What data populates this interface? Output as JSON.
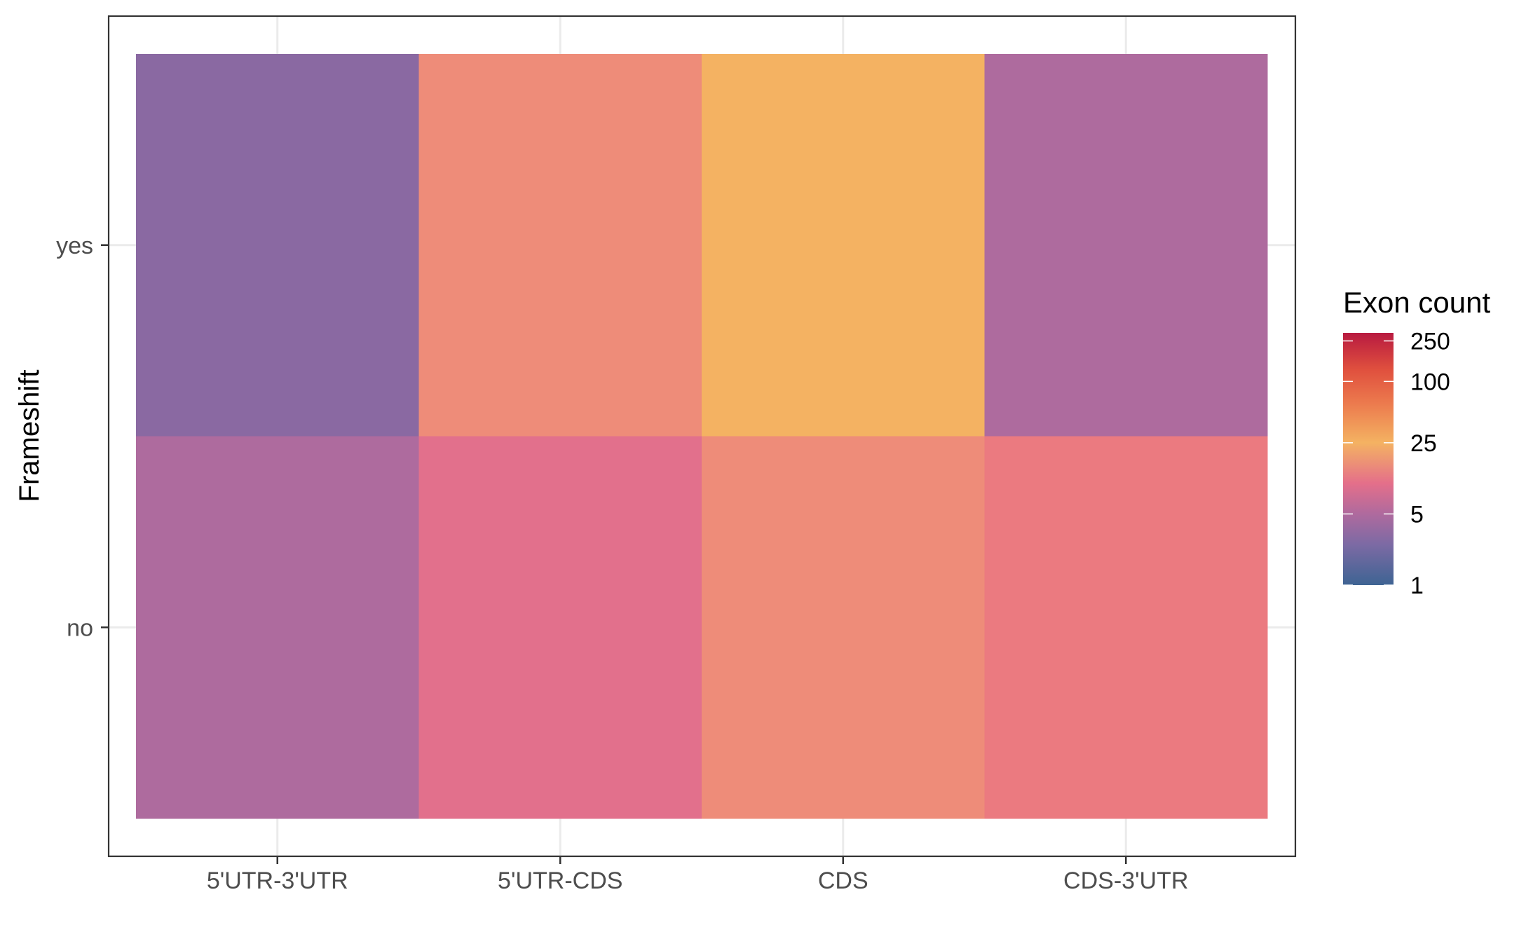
{
  "chart_data": {
    "type": "heatmap",
    "x_categories": [
      "5'UTR-3'UTR",
      "5'UTR-CDS",
      "CDS",
      "CDS-3'UTR"
    ],
    "y_categories": [
      "no",
      "yes"
    ],
    "xlabel": "",
    "ylabel": "Frameshift",
    "cells": [
      {
        "x": "5'UTR-3'UTR",
        "y": "yes",
        "value": 3,
        "color": "#8A69A2"
      },
      {
        "x": "5'UTR-CDS",
        "y": "yes",
        "value": 55,
        "color": "#EE8C79"
      },
      {
        "x": "CDS",
        "y": "yes",
        "value": 28,
        "color": "#F4B262"
      },
      {
        "x": "CDS-3'UTR",
        "y": "yes",
        "value": 5,
        "color": "#AE6B9E"
      },
      {
        "x": "5'UTR-3'UTR",
        "y": "no",
        "value": 5,
        "color": "#AE6B9E"
      },
      {
        "x": "5'UTR-CDS",
        "y": "no",
        "value": 8,
        "color": "#E2708C"
      },
      {
        "x": "CDS",
        "y": "no",
        "value": 55,
        "color": "#EE8C79"
      },
      {
        "x": "CDS-3'UTR",
        "y": "no",
        "value": 12,
        "color": "#EB7A80"
      }
    ],
    "legend": {
      "title": "Exon count",
      "placement": "right",
      "scale": "log",
      "breaks": [
        1,
        5,
        25,
        100,
        250
      ],
      "break_labels": [
        "1",
        "5",
        "25",
        "100",
        "250"
      ],
      "limits": [
        1,
        300
      ],
      "color_stops": [
        {
          "value": 1,
          "color": "#3E6493"
        },
        {
          "value": 2.5,
          "color": "#7C6AA4"
        },
        {
          "value": 5,
          "color": "#AF6A9E"
        },
        {
          "value": 10,
          "color": "#E46F8A"
        },
        {
          "value": 25,
          "color": "#F4B262"
        },
        {
          "value": 60,
          "color": "#EC7B4E"
        },
        {
          "value": 130,
          "color": "#E0503E"
        },
        {
          "value": 300,
          "color": "#B81A40"
        }
      ]
    },
    "grid": true,
    "theme": "bw"
  }
}
